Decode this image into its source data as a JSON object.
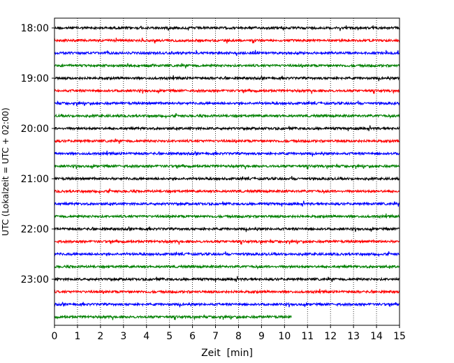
{
  "chart_data": {
    "type": "line",
    "title": "",
    "xlabel": "Zeit  [min]",
    "ylabel": "UTC (Lokalzeit = UTC + 02:00)",
    "xlim": [
      0,
      15
    ],
    "x_ticks": [
      "0",
      "1",
      "2",
      "3",
      "4",
      "5",
      "6",
      "7",
      "8",
      "9",
      "10",
      "11",
      "12",
      "13",
      "14",
      "15"
    ],
    "y_tick_labels": [
      "18:00",
      "19:00",
      "20:00",
      "21:00",
      "22:00",
      "23:00"
    ],
    "grid": "vertical-dotted",
    "trace_interval_min": 15,
    "trace_colors": [
      "#000000",
      "#ff0000",
      "#0000ff",
      "#008000"
    ],
    "traces": [
      {
        "start": "18:00",
        "duration_min": 15
      },
      {
        "start": "18:15",
        "duration_min": 15
      },
      {
        "start": "18:30",
        "duration_min": 15
      },
      {
        "start": "18:45",
        "duration_min": 15
      },
      {
        "start": "19:00",
        "duration_min": 15
      },
      {
        "start": "19:15",
        "duration_min": 15
      },
      {
        "start": "19:30",
        "duration_min": 15
      },
      {
        "start": "19:45",
        "duration_min": 15
      },
      {
        "start": "20:00",
        "duration_min": 15
      },
      {
        "start": "20:15",
        "duration_min": 15
      },
      {
        "start": "20:30",
        "duration_min": 15
      },
      {
        "start": "20:45",
        "duration_min": 15
      },
      {
        "start": "21:00",
        "duration_min": 15
      },
      {
        "start": "21:15",
        "duration_min": 15
      },
      {
        "start": "21:30",
        "duration_min": 15
      },
      {
        "start": "21:45",
        "duration_min": 15
      },
      {
        "start": "22:00",
        "duration_min": 15
      },
      {
        "start": "22:15",
        "duration_min": 15
      },
      {
        "start": "22:30",
        "duration_min": 15
      },
      {
        "start": "22:45",
        "duration_min": 15
      },
      {
        "start": "23:00",
        "duration_min": 15
      },
      {
        "start": "23:15",
        "duration_min": 15
      },
      {
        "start": "23:30",
        "duration_min": 15
      },
      {
        "start": "23:45",
        "duration_min": 10.3
      }
    ]
  }
}
